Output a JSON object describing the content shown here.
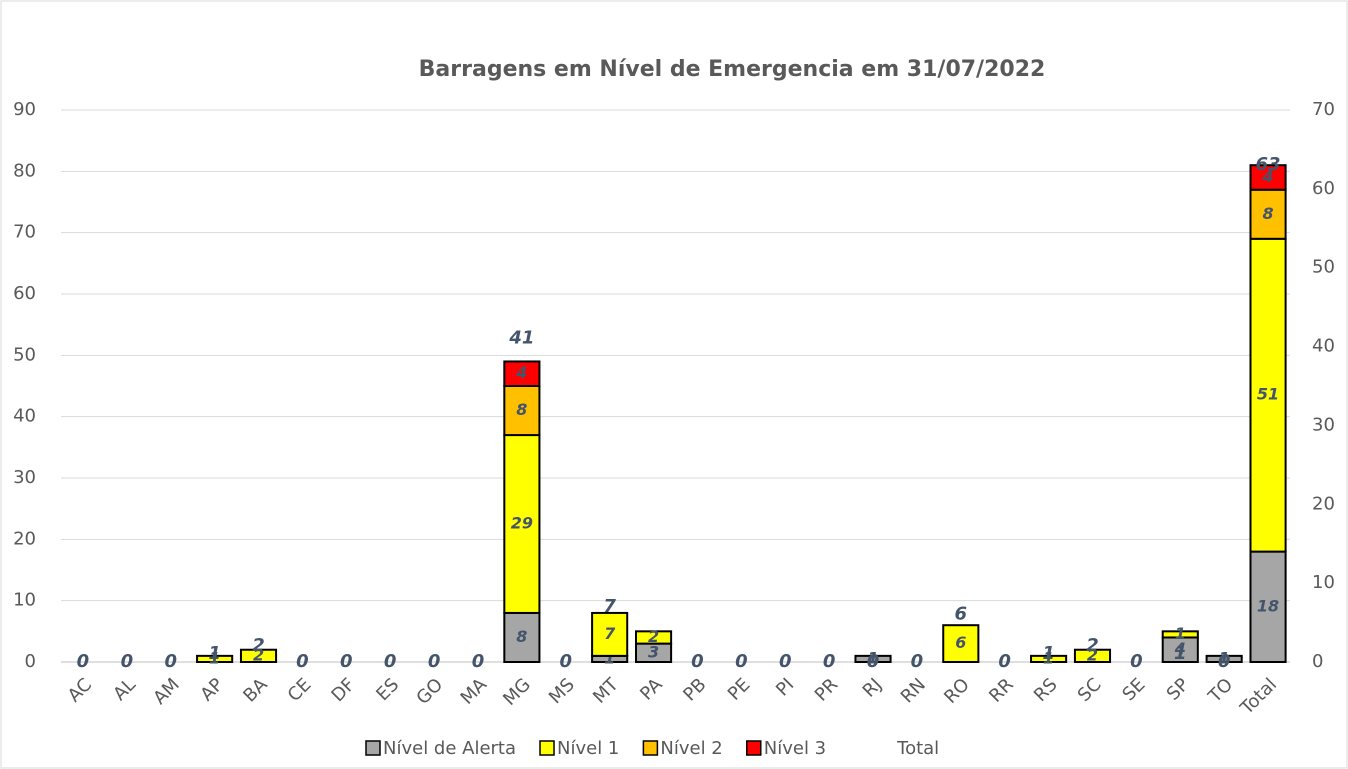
{
  "chart_data": {
    "type": "stacked_bar",
    "title": "Barragens em Nível de Emergencia em  31/07/2022",
    "categories": [
      "AC",
      "AL",
      "AM",
      "AP",
      "BA",
      "CE",
      "DF",
      "ES",
      "GO",
      "MA",
      "MG",
      "MS",
      "MT",
      "PA",
      "PB",
      "PE",
      "PI",
      "PR",
      "RJ",
      "RN",
      "RO",
      "RR",
      "RS",
      "SC",
      "SE",
      "SP",
      "TO",
      "Total"
    ],
    "series": [
      {
        "name": "Nível de Alerta",
        "color": "#a6a6a6",
        "values": [
          null,
          null,
          null,
          null,
          null,
          null,
          null,
          null,
          null,
          null,
          8,
          null,
          1,
          3,
          null,
          null,
          null,
          null,
          1,
          null,
          null,
          null,
          null,
          null,
          null,
          4,
          1,
          18
        ]
      },
      {
        "name": "Nível 1",
        "color": "#ffff00",
        "values": [
          null,
          null,
          null,
          1,
          2,
          null,
          null,
          null,
          null,
          null,
          29,
          null,
          7,
          2,
          null,
          null,
          null,
          null,
          null,
          null,
          6,
          null,
          1,
          2,
          null,
          1,
          null,
          51
        ]
      },
      {
        "name": "Nível 2",
        "color": "#ffc000",
        "values": [
          null,
          null,
          null,
          null,
          null,
          null,
          null,
          null,
          null,
          null,
          8,
          null,
          null,
          null,
          null,
          null,
          null,
          null,
          null,
          null,
          null,
          null,
          null,
          null,
          null,
          null,
          null,
          8
        ]
      },
      {
        "name": "Nível 3",
        "color": "#ff0000",
        "values": [
          null,
          null,
          null,
          null,
          null,
          null,
          null,
          null,
          null,
          null,
          4,
          null,
          null,
          null,
          null,
          null,
          null,
          null,
          null,
          null,
          null,
          null,
          null,
          null,
          null,
          null,
          null,
          4
        ]
      },
      {
        "name": "Total",
        "axis": "y2",
        "values": [
          0,
          0,
          0,
          1,
          2,
          0,
          0,
          0,
          0,
          0,
          41,
          0,
          7,
          null,
          0,
          0,
          0,
          0,
          0,
          0,
          6,
          0,
          1,
          2,
          0,
          1,
          0,
          63
        ]
      }
    ],
    "ylim": [
      0,
      90
    ],
    "yticks": [
      0,
      10,
      20,
      30,
      40,
      50,
      60,
      70,
      80,
      90
    ],
    "y2lim": [
      0,
      70
    ],
    "y2ticks": [
      0,
      10,
      20,
      30,
      40,
      50,
      60,
      70
    ],
    "grid": true,
    "legend": "bottom"
  }
}
